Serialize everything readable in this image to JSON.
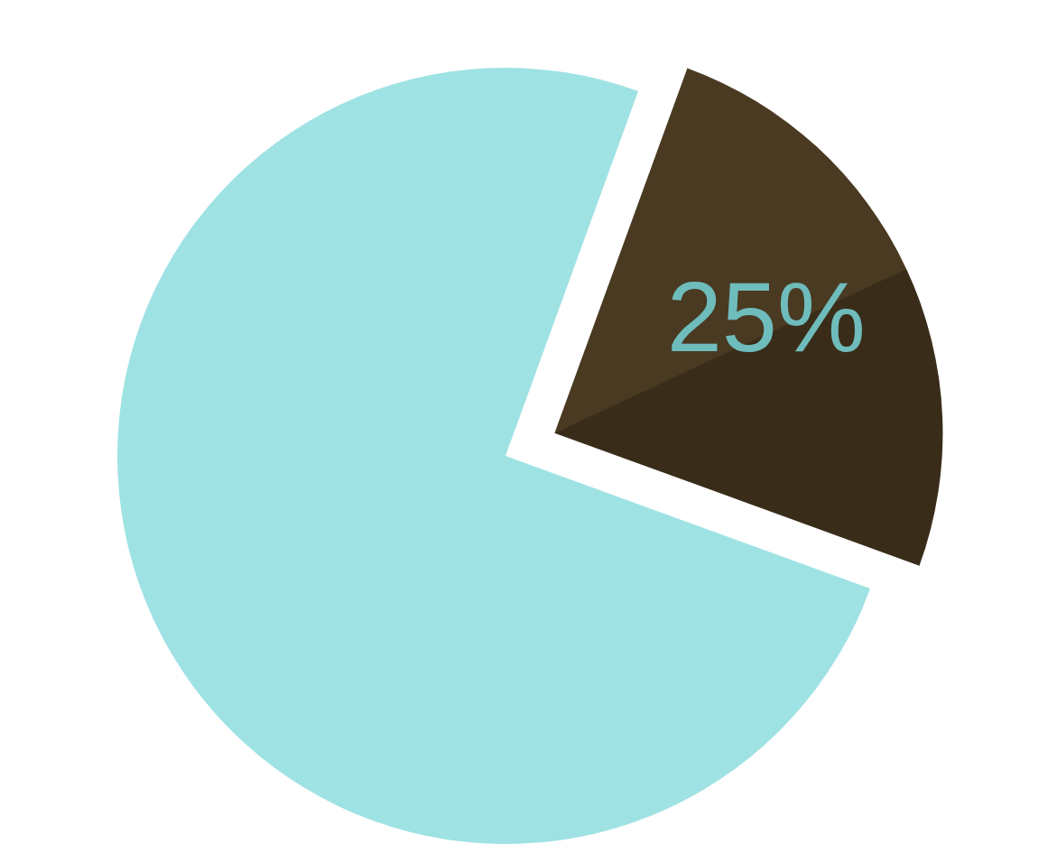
{
  "chart_data": {
    "type": "pie",
    "values": [
      25,
      75
    ],
    "value_labels": [
      "25%",
      null
    ],
    "colors": [
      "#4a3a22",
      "#9fe2e4"
    ],
    "data_labels": true
  }
}
